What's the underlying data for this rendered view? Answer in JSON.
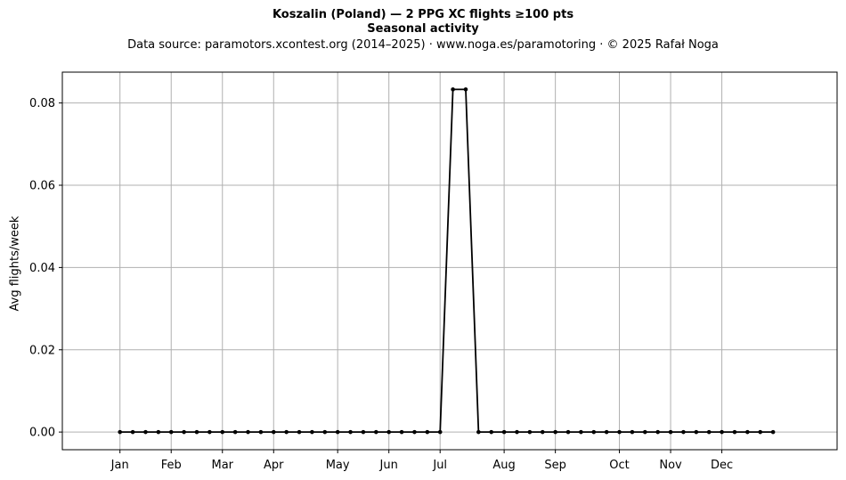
{
  "header": {
    "title_line1": "Koszalin (Poland)  —  2 PPG XC flights ≥100 pts",
    "title_line2": "Seasonal activity",
    "source": "Data source: paramotors.xcontest.org (2014–2025)  ·  www.noga.es/paramotoring  ·  © 2025 Rafał Noga"
  },
  "chart_data": {
    "type": "line",
    "title": "Koszalin (Poland)  —  2 PPG XC flights ≥100 pts",
    "subtitle": "Seasonal activity",
    "xlabel": "",
    "ylabel": "Avg flights/week",
    "x_unit": "week of year",
    "xlim": [
      -3.5,
      57
    ],
    "ylim": [
      -0.0043,
      0.0875
    ],
    "x_ticks": [
      {
        "label": "Jan",
        "week": 1
      },
      {
        "label": "Feb",
        "week": 5
      },
      {
        "label": "Mar",
        "week": 9
      },
      {
        "label": "Apr",
        "week": 13
      },
      {
        "label": "May",
        "week": 18
      },
      {
        "label": "Jun",
        "week": 22
      },
      {
        "label": "Jul",
        "week": 26
      },
      {
        "label": "Aug",
        "week": 31
      },
      {
        "label": "Sep",
        "week": 35
      },
      {
        "label": "Oct",
        "week": 40
      },
      {
        "label": "Nov",
        "week": 44
      },
      {
        "label": "Dec",
        "week": 48
      }
    ],
    "y_ticks": [
      0.0,
      0.02,
      0.04,
      0.06,
      0.08
    ],
    "y_tick_labels": [
      "0.00",
      "0.02",
      "0.04",
      "0.06",
      "0.08"
    ],
    "grid": true,
    "color": "#000000",
    "grid_color": "#b0b0b0",
    "series": [
      {
        "x": [
          1,
          2,
          3,
          4,
          5,
          6,
          7,
          8,
          9,
          10,
          11,
          12,
          13,
          14,
          15,
          16,
          17,
          18,
          19,
          20,
          21,
          22,
          23,
          24,
          25,
          26,
          27,
          28,
          29,
          30,
          31,
          32,
          33,
          34,
          35,
          36,
          37,
          38,
          39,
          40,
          41,
          42,
          43,
          44,
          45,
          46,
          47,
          48,
          49,
          50,
          51,
          52
        ],
        "values": [
          0,
          0,
          0,
          0,
          0,
          0,
          0,
          0,
          0,
          0,
          0,
          0,
          0,
          0,
          0,
          0,
          0,
          0,
          0,
          0,
          0,
          0,
          0,
          0,
          0,
          0,
          0.0833,
          0.0833,
          0,
          0,
          0,
          0,
          0,
          0,
          0,
          0,
          0,
          0,
          0,
          0,
          0,
          0,
          0,
          0,
          0,
          0,
          0,
          0,
          0,
          0,
          0,
          0
        ]
      }
    ]
  }
}
